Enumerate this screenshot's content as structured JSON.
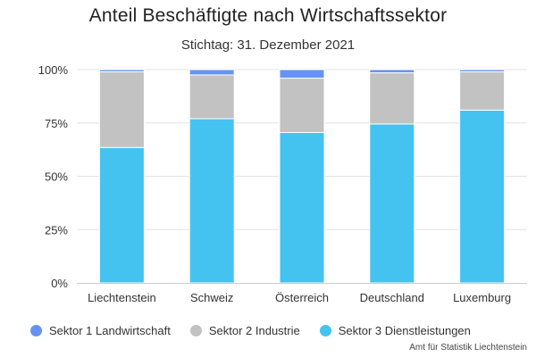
{
  "chart_data": {
    "type": "bar",
    "stacked": true,
    "title": "Anteil Beschäftigte nach Wirtschaftssektor",
    "subtitle": "Stichtag: 31. Dezember 2021",
    "xlabel": "",
    "ylabel": "",
    "ylim": [
      0,
      100
    ],
    "y_ticks": [
      "0%",
      "25%",
      "50%",
      "75%",
      "100%"
    ],
    "y_tick_values": [
      0,
      25,
      50,
      75,
      100
    ],
    "grid": true,
    "legend_position": "bottom",
    "categories": [
      "Liechtenstein",
      "Schweiz",
      "Österreich",
      "Deutschland",
      "Luxemburg"
    ],
    "series": [
      {
        "name": "Sektor 3 Dienstleistungen",
        "color": "#45c3f0",
        "values": [
          63.5,
          77,
          70.5,
          74.5,
          81
        ]
      },
      {
        "name": "Sektor 2 Industrie",
        "color": "#c2c2c2",
        "values": [
          35.5,
          20.5,
          25.5,
          24,
          18
        ]
      },
      {
        "name": "Sektor 1 Landwirtschaft",
        "color": "#6693f3",
        "values": [
          1,
          2.5,
          4,
          1.5,
          1
        ]
      }
    ],
    "legend_order": [
      "Sektor 1 Landwirtschaft",
      "Sektor 2 Industrie",
      "Sektor 3 Dienstleistungen"
    ]
  },
  "legend": [
    {
      "label": "Sektor 1 Landwirtschaft",
      "color": "#6693f3"
    },
    {
      "label": "Sektor 2 Industrie",
      "color": "#c2c2c2"
    },
    {
      "label": "Sektor 3 Dienstleistungen",
      "color": "#45c3f0"
    }
  ],
  "source": "Amt für Statistik Liechtenstein"
}
